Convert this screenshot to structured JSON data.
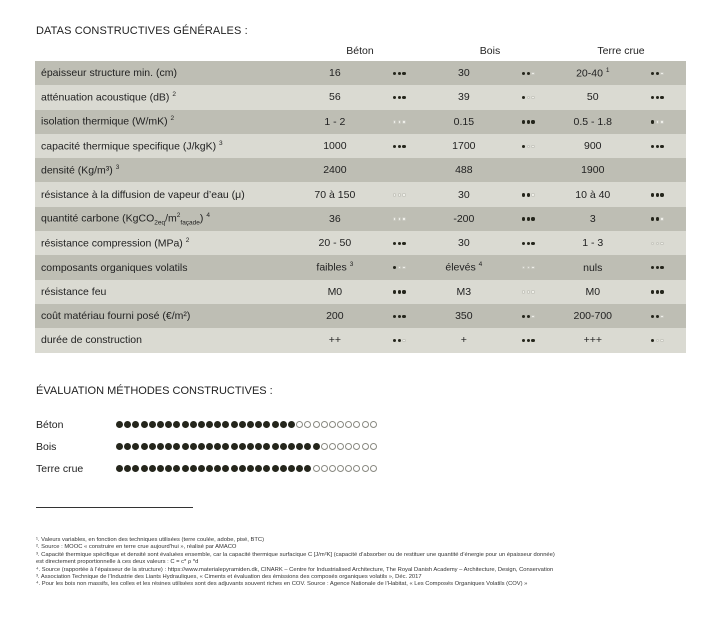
{
  "title_datas": "DATAS CONSTRUCTIVES GÉNÉRALES :",
  "columns": [
    "Béton",
    "Bois",
    "Terre crue"
  ],
  "rows": [
    {
      "label": "épaisseur structure min. (cm)",
      "label_sup": "",
      "cells": [
        {
          "v": "16",
          "vsup": "",
          "d": 3
        },
        {
          "v": "30",
          "vsup": "",
          "d": 2
        },
        {
          "v": "20-40",
          "vsup": "1",
          "d": 2
        }
      ]
    },
    {
      "label": "atténuation acoustique (dB)",
      "label_sup": "2",
      "cells": [
        {
          "v": "56",
          "vsup": "",
          "d": 3
        },
        {
          "v": "39",
          "vsup": "",
          "d": 1
        },
        {
          "v": "50",
          "vsup": "",
          "d": 3
        }
      ]
    },
    {
      "label": "isolation thermique (W/mK)",
      "label_sup": "2",
      "cells": [
        {
          "v": "1 - 2",
          "vsup": "",
          "d": 0
        },
        {
          "v": "0.15",
          "vsup": "",
          "d": 3
        },
        {
          "v": "0.5 - 1.8",
          "vsup": "",
          "d": 1
        }
      ]
    },
    {
      "label": "capacité thermique specifique (J/kgK)",
      "label_sup": "3",
      "cells": [
        {
          "v": "1000",
          "vsup": "",
          "d": 3
        },
        {
          "v": "1700",
          "vsup": "",
          "d": 1
        },
        {
          "v": "900",
          "vsup": "",
          "d": 3
        }
      ]
    },
    {
      "label": "densité (Kg/m³)",
      "label_sup": "3",
      "cells": [
        {
          "v": "2400",
          "vsup": "",
          "d": -1
        },
        {
          "v": "488",
          "vsup": "",
          "d": -1
        },
        {
          "v": "1900",
          "vsup": "",
          "d": -1
        }
      ]
    },
    {
      "label": "résistance à la diffusion de vapeur d’eau (μ)",
      "label_sup": "",
      "cells": [
        {
          "v": "70 à 150",
          "vsup": "",
          "d": 0
        },
        {
          "v": "30",
          "vsup": "",
          "d": 2
        },
        {
          "v": "10 à 40",
          "vsup": "",
          "d": 3
        }
      ]
    },
    {
      "label": "quantité carbone (KgCO",
      "label_sup": "4",
      "carbon": true,
      "cells": [
        {
          "v": "36",
          "vsup": "",
          "d": 0
        },
        {
          "v": "-200",
          "vsup": "",
          "d": 3
        },
        {
          "v": "3",
          "vsup": "",
          "d": 2
        }
      ]
    },
    {
      "label": "résistance compression (MPa)",
      "label_sup": "2",
      "cells": [
        {
          "v": "20 - 50",
          "vsup": "",
          "d": 3
        },
        {
          "v": "30",
          "vsup": "",
          "d": 3
        },
        {
          "v": "1 - 3",
          "vsup": "",
          "d": 0
        }
      ]
    },
    {
      "label": "composants organiques volatils",
      "label_sup": "",
      "cells": [
        {
          "v": "faibles",
          "vsup": "3",
          "d": 1
        },
        {
          "v": "élevés",
          "vsup": "4",
          "d": 0
        },
        {
          "v": "nuls",
          "vsup": "",
          "d": 3
        }
      ]
    },
    {
      "label": "résistance feu",
      "label_sup": "",
      "cells": [
        {
          "v": "M0",
          "vsup": "",
          "d": 3
        },
        {
          "v": "M3",
          "vsup": "",
          "d": 0
        },
        {
          "v": "M0",
          "vsup": "",
          "d": 3
        }
      ]
    },
    {
      "label": "coût matériau fourni posé (€/m²)",
      "label_sup": "",
      "cells": [
        {
          "v": "200",
          "vsup": "",
          "d": 3
        },
        {
          "v": "350",
          "vsup": "",
          "d": 2
        },
        {
          "v": "200-700",
          "vsup": "",
          "d": 2
        }
      ]
    },
    {
      "label": "durée de construction",
      "label_sup": "",
      "cells": [
        {
          "v": "++",
          "vsup": "",
          "d": 2
        },
        {
          "v": "+",
          "vsup": "",
          "d": 3
        },
        {
          "v": "+++",
          "vsup": "",
          "d": 1
        }
      ]
    }
  ],
  "carbon_parts": {
    "sub1": "2eq",
    "mid": "/m",
    "sup": "2",
    "sub2": "façade",
    "end": ")"
  },
  "title_eval": "ÉVALUATION MÉTHODES CONSTRUCTIVES :",
  "evaluation": [
    {
      "label": "Béton",
      "filled": 22,
      "total": 32
    },
    {
      "label": "Bois",
      "filled": 25,
      "total": 32
    },
    {
      "label": "Terre crue",
      "filled": 24,
      "total": 32
    }
  ],
  "footnotes": [
    "¹. Valeurs variables, en fonction des techniques utilisées (terre coulée, adobe, pisé, BTC)",
    "². Source : MOOC « construire en terre crue aujourd’hui », réalisé par AMACO",
    "³. Capacité thermique spécifique et densité sont évaluées ensemble, car la capacité thermique surfacique C [J/m²K] (capacité d’absorber ou de restituer une quantité d’énergie pour un épaisseur donnée)",
    "est directement proportionnelle à ces deux valeurs : C = c* ρ *d",
    "⁴. Source (rapportée à l’épaisseur de la structure) : https://www.materialepyramiden.dk, CINARK – Centre for Industrialised Architecture, The Royal Danish Academy – Architecture, Design, Conservation",
    "³. Association Technique de l’Industrie des Liants Hydrauliques, « Ciments et évaluation des émissions des composés organiques volatils », Déc. 2017",
    "⁴. Pour les bois non massifs, les colles et les résines utilisées sont des adjuvants souvent riches en COV. Source : Agence Nationale de l’Habitat, « Les Composés Organiques Volatils (COV) »"
  ]
}
